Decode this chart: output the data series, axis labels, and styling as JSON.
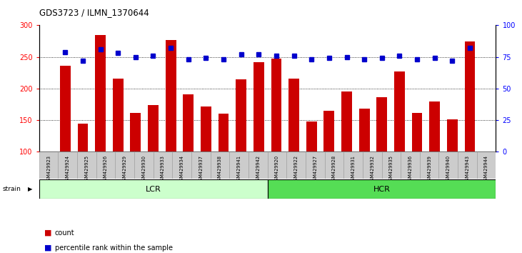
{
  "title": "GDS3723 / ILMN_1370644",
  "samples": [
    "GSM429923",
    "GSM429924",
    "GSM429925",
    "GSM429926",
    "GSM429929",
    "GSM429930",
    "GSM429933",
    "GSM429934",
    "GSM429937",
    "GSM429938",
    "GSM429941",
    "GSM429942",
    "GSM429920",
    "GSM429922",
    "GSM429927",
    "GSM429928",
    "GSM429931",
    "GSM429932",
    "GSM429935",
    "GSM429936",
    "GSM429939",
    "GSM429940",
    "GSM429943",
    "GSM429944"
  ],
  "counts": [
    236,
    145,
    285,
    216,
    161,
    174,
    277,
    191,
    172,
    160,
    215,
    242,
    247,
    216,
    148,
    165,
    195,
    168,
    186,
    227,
    161,
    180,
    151,
    275
  ],
  "percentiles": [
    79,
    72,
    81,
    78,
    75,
    76,
    82,
    73,
    74,
    73,
    77,
    77,
    76,
    76,
    73,
    74,
    75,
    73,
    74,
    76,
    73,
    74,
    72,
    82
  ],
  "lcr_count": 12,
  "hcr_count": 12,
  "bar_color": "#cc0000",
  "dot_color": "#0000cc",
  "ylim_left": [
    100,
    300
  ],
  "ylim_right": [
    0,
    100
  ],
  "yticks_left": [
    100,
    150,
    200,
    250,
    300
  ],
  "yticks_right": [
    0,
    25,
    50,
    75,
    100
  ],
  "grid_values": [
    150,
    200,
    250
  ],
  "lcr_color": "#ccffcc",
  "hcr_color": "#55dd55",
  "strain_label": "strain",
  "lcr_label": "LCR",
  "hcr_label": "HCR",
  "legend_count_label": "count",
  "legend_percentile_label": "percentile rank within the sample",
  "tick_bg_color": "#cccccc",
  "tick_bg_border": "#999999"
}
